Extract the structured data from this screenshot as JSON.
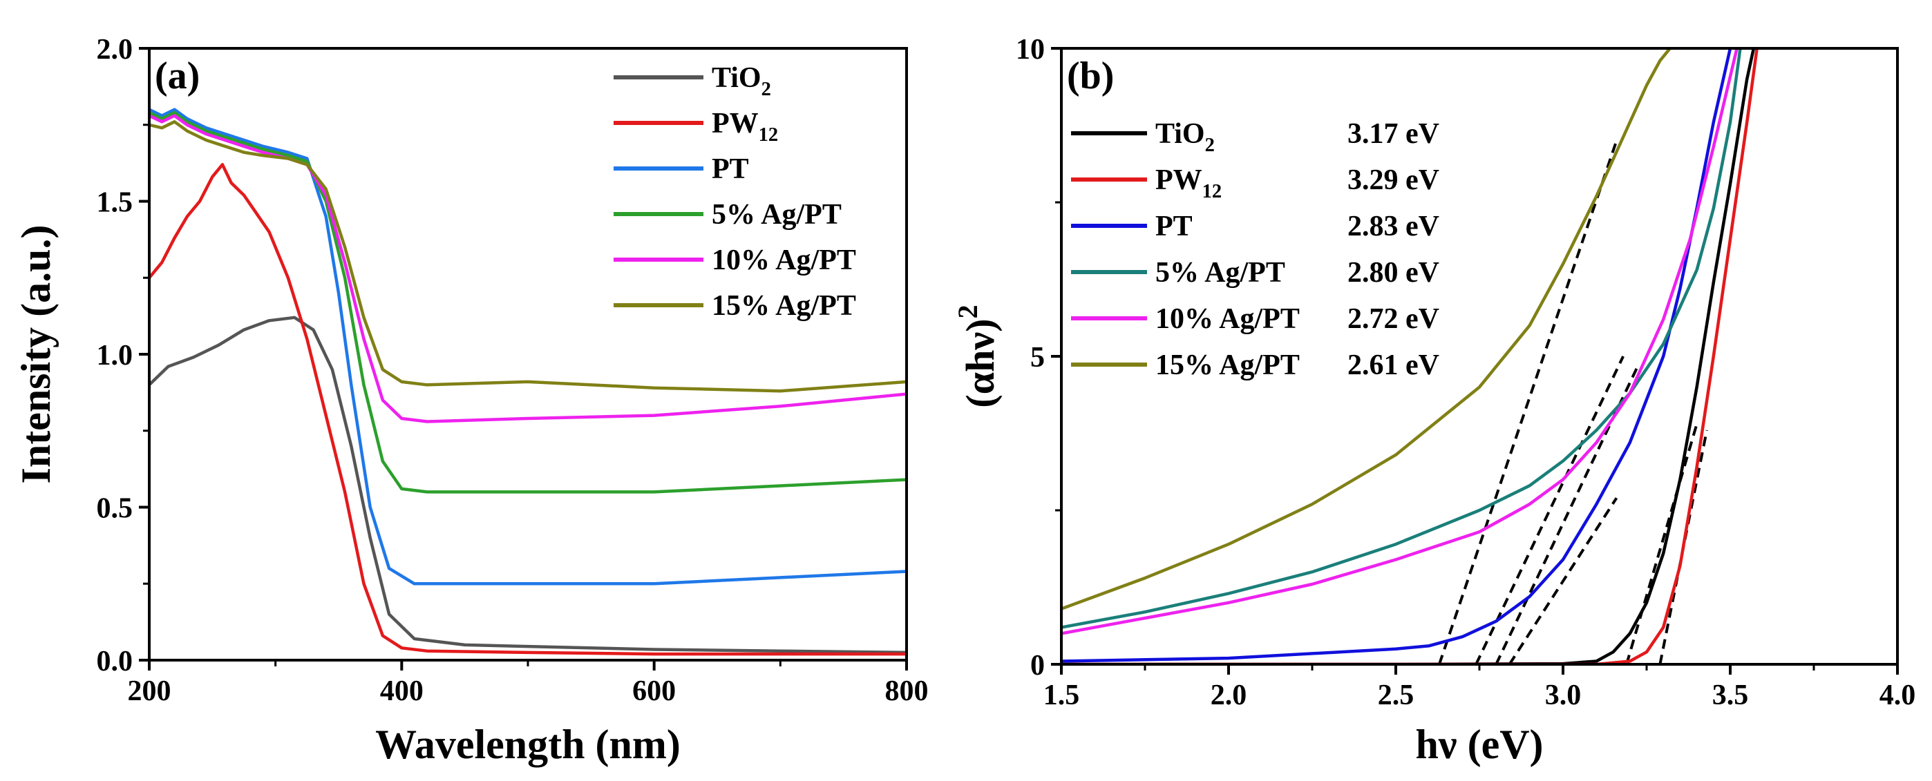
{
  "chart_data": [
    {
      "type": "line",
      "panel_label": "(a)",
      "xlabel": "Wavelength (nm)",
      "ylabel": "Intensity (a.u.)",
      "xlim": [
        200,
        800
      ],
      "ylim": [
        0,
        2.0
      ],
      "xticks": [
        200,
        400,
        600,
        800
      ],
      "xtick_labels": [
        "200",
        "400",
        "600",
        "800"
      ],
      "yticks": [
        0,
        0.5,
        1.0,
        1.5,
        2.0
      ],
      "ytick_labels": [
        "0.0",
        "0.5",
        "1.0",
        "1.5",
        "2.0"
      ],
      "legend_position": "top-right",
      "series": [
        {
          "name": "TiO2",
          "label_main": "TiO",
          "label_sub": "2",
          "color": "#555555",
          "x": [
            200,
            215,
            235,
            255,
            275,
            295,
            315,
            330,
            345,
            360,
            375,
            390,
            410,
            450,
            500,
            600,
            700,
            800
          ],
          "y": [
            0.9,
            0.96,
            0.99,
            1.03,
            1.08,
            1.11,
            1.12,
            1.08,
            0.95,
            0.7,
            0.4,
            0.15,
            0.07,
            0.05,
            0.045,
            0.035,
            0.03,
            0.025
          ]
        },
        {
          "name": "PW12",
          "label_main": "PW",
          "label_sub": "12",
          "color": "#e31a1c",
          "x": [
            200,
            210,
            220,
            230,
            240,
            250,
            258,
            265,
            275,
            285,
            295,
            310,
            325,
            340,
            355,
            370,
            385,
            400,
            420,
            500,
            600,
            800
          ],
          "y": [
            1.25,
            1.3,
            1.38,
            1.45,
            1.5,
            1.58,
            1.62,
            1.56,
            1.52,
            1.46,
            1.4,
            1.25,
            1.05,
            0.8,
            0.55,
            0.25,
            0.08,
            0.04,
            0.03,
            0.025,
            0.02,
            0.02
          ]
        },
        {
          "name": "PT",
          "label_main": "PT",
          "label_sub": "",
          "color": "#1f78e8",
          "x": [
            200,
            210,
            220,
            230,
            245,
            260,
            275,
            290,
            310,
            325,
            340,
            350,
            360,
            375,
            390,
            410,
            430,
            500,
            600,
            700,
            800
          ],
          "y": [
            1.8,
            1.78,
            1.8,
            1.77,
            1.74,
            1.72,
            1.7,
            1.68,
            1.66,
            1.64,
            1.45,
            1.2,
            0.9,
            0.5,
            0.3,
            0.25,
            0.25,
            0.25,
            0.25,
            0.27,
            0.29
          ]
        },
        {
          "name": "5% Ag/PT",
          "label_main": "5%   Ag/PT",
          "label_sub": "",
          "color": "#2ca02c",
          "x": [
            200,
            210,
            220,
            230,
            245,
            260,
            275,
            290,
            310,
            325,
            340,
            355,
            370,
            385,
            400,
            420,
            500,
            600,
            700,
            800
          ],
          "y": [
            1.79,
            1.77,
            1.79,
            1.76,
            1.73,
            1.71,
            1.69,
            1.67,
            1.65,
            1.63,
            1.5,
            1.25,
            0.9,
            0.65,
            0.56,
            0.55,
            0.55,
            0.55,
            0.57,
            0.59
          ]
        },
        {
          "name": "10% Ag/PT",
          "label_main": "10% Ag/PT",
          "label_sub": "",
          "color": "#ee22ee",
          "x": [
            200,
            210,
            220,
            230,
            245,
            260,
            275,
            290,
            310,
            325,
            340,
            355,
            370,
            385,
            400,
            420,
            500,
            600,
            700,
            800
          ],
          "y": [
            1.78,
            1.76,
            1.78,
            1.75,
            1.72,
            1.7,
            1.68,
            1.66,
            1.64,
            1.62,
            1.52,
            1.3,
            1.05,
            0.85,
            0.79,
            0.78,
            0.79,
            0.8,
            0.83,
            0.87
          ]
        },
        {
          "name": "15% Ag/PT",
          "label_main": "15% Ag/PT",
          "label_sub": "",
          "color": "#808016",
          "x": [
            200,
            210,
            220,
            230,
            245,
            260,
            275,
            290,
            310,
            325,
            340,
            355,
            370,
            385,
            400,
            420,
            500,
            600,
            700,
            800
          ],
          "y": [
            1.75,
            1.74,
            1.76,
            1.73,
            1.7,
            1.68,
            1.66,
            1.65,
            1.64,
            1.62,
            1.54,
            1.35,
            1.12,
            0.95,
            0.91,
            0.9,
            0.91,
            0.89,
            0.88,
            0.91
          ]
        }
      ]
    },
    {
      "type": "line",
      "panel_label": "(b)",
      "xlabel": "hν (eV)",
      "ylabel_main": "(αhν)",
      "ylabel_sup": "2",
      "xlim": [
        1.5,
        4.0
      ],
      "ylim": [
        0,
        10
      ],
      "xticks": [
        1.5,
        2.0,
        2.5,
        3.0,
        3.5,
        4.0
      ],
      "xtick_labels": [
        "1.5",
        "2.0",
        "2.5",
        "3.0",
        "3.5",
        "4.0"
      ],
      "yticks": [
        0,
        5,
        10
      ],
      "ytick_labels": [
        "0",
        "5",
        "10"
      ],
      "legend_position": "top-left",
      "series": [
        {
          "name": "TiO2",
          "label_main": "TiO",
          "label_sub": "2",
          "band_gap": "3.17 eV",
          "color": "#000000",
          "x": [
            1.5,
            2.5,
            3.0,
            3.1,
            3.15,
            3.2,
            3.25,
            3.3,
            3.35,
            3.4,
            3.45,
            3.5,
            3.55,
            3.57
          ],
          "y": [
            0,
            0,
            0.01,
            0.05,
            0.2,
            0.5,
            1.0,
            1.8,
            3.0,
            4.5,
            6.2,
            7.8,
            9.5,
            10
          ]
        },
        {
          "name": "PW12",
          "label_main": "PW",
          "label_sub": "12",
          "band_gap": "3.29 eV",
          "color": "#e31a1c",
          "x": [
            1.5,
            2.5,
            3.1,
            3.2,
            3.25,
            3.3,
            3.35,
            3.4,
            3.45,
            3.5,
            3.55,
            3.58
          ],
          "y": [
            0,
            0,
            0,
            0.05,
            0.2,
            0.6,
            1.6,
            3.2,
            5.0,
            6.9,
            8.8,
            10
          ]
        },
        {
          "name": "PT",
          "label_main": "PT",
          "label_sub": "",
          "band_gap": "2.83 eV",
          "color": "#1010dd",
          "x": [
            1.5,
            2.0,
            2.5,
            2.6,
            2.7,
            2.8,
            2.9,
            3.0,
            3.1,
            3.2,
            3.3,
            3.35,
            3.4,
            3.45,
            3.5
          ],
          "y": [
            0.05,
            0.1,
            0.25,
            0.3,
            0.45,
            0.7,
            1.1,
            1.7,
            2.6,
            3.6,
            5.0,
            6.1,
            7.4,
            8.8,
            10
          ]
        },
        {
          "name": "5% Ag/PT",
          "label_main": "5%   Ag/PT",
          "label_sub": "",
          "band_gap": "2.80 eV",
          "color": "#1a7f7a",
          "x": [
            1.5,
            1.75,
            2.0,
            2.25,
            2.5,
            2.75,
            2.9,
            3.0,
            3.1,
            3.2,
            3.3,
            3.4,
            3.45,
            3.5,
            3.53
          ],
          "y": [
            0.6,
            0.85,
            1.15,
            1.5,
            1.95,
            2.5,
            2.9,
            3.3,
            3.8,
            4.4,
            5.2,
            6.4,
            7.4,
            8.8,
            10
          ]
        },
        {
          "name": "10% Ag/PT",
          "label_main": "10% Ag/PT",
          "label_sub": "",
          "band_gap": "2.72 eV",
          "color": "#ee22ee",
          "x": [
            1.5,
            1.75,
            2.0,
            2.25,
            2.5,
            2.75,
            2.9,
            3.0,
            3.1,
            3.2,
            3.3,
            3.38,
            3.45,
            3.52
          ],
          "y": [
            0.5,
            0.75,
            1.0,
            1.3,
            1.7,
            2.15,
            2.6,
            3.0,
            3.6,
            4.4,
            5.6,
            6.9,
            8.4,
            10
          ]
        },
        {
          "name": "15% Ag/PT",
          "label_main": "15% Ag/PT",
          "label_sub": "",
          "band_gap": "2.61 eV",
          "color": "#808016",
          "x": [
            1.5,
            1.75,
            2.0,
            2.25,
            2.5,
            2.75,
            2.9,
            3.0,
            3.1,
            3.2,
            3.25,
            3.29,
            3.32
          ],
          "y": [
            0.9,
            1.4,
            1.95,
            2.6,
            3.4,
            4.5,
            5.5,
            6.5,
            7.6,
            8.8,
            9.4,
            9.8,
            10
          ]
        }
      ],
      "tangent_lines": [
        {
          "x1": 2.63,
          "y1": 0,
          "x2": 3.16,
          "y2": 8.5
        },
        {
          "x1": 2.74,
          "y1": 0,
          "x2": 3.18,
          "y2": 5.0
        },
        {
          "x1": 2.8,
          "y1": 0,
          "x2": 3.22,
          "y2": 4.8
        },
        {
          "x1": 2.84,
          "y1": 0,
          "x2": 3.16,
          "y2": 2.7
        },
        {
          "x1": 3.19,
          "y1": 0,
          "x2": 3.4,
          "y2": 3.9
        },
        {
          "x1": 3.29,
          "y1": 0,
          "x2": 3.43,
          "y2": 3.8
        }
      ]
    }
  ]
}
